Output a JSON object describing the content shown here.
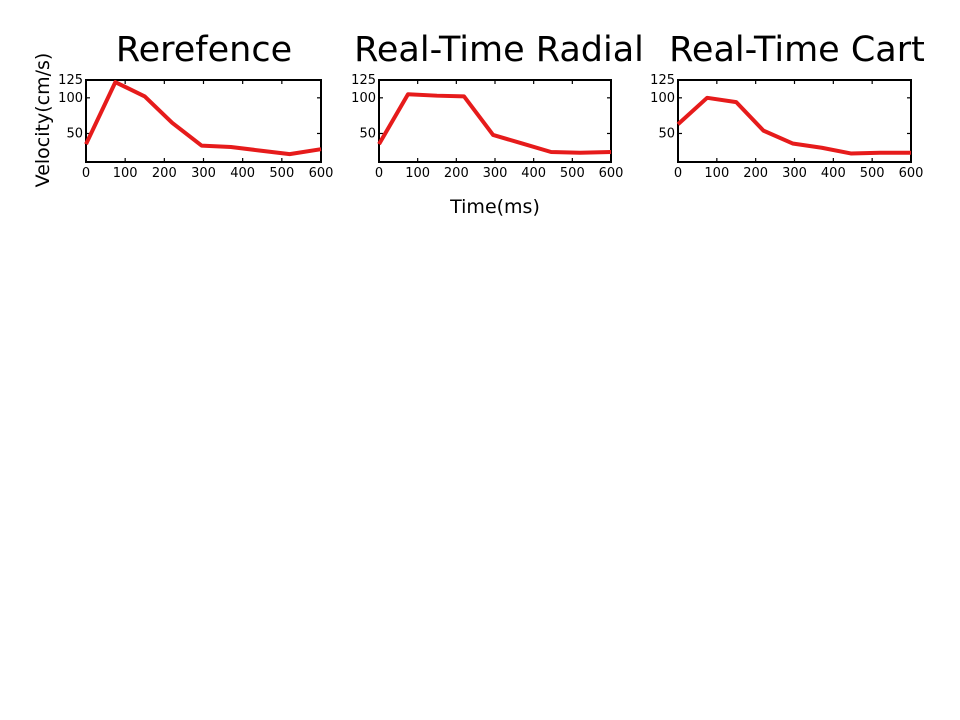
{
  "chart_data": [
    {
      "type": "line",
      "title": "Rerefence",
      "color": "#e61b1b",
      "x": [
        0,
        75,
        150,
        220,
        295,
        370,
        445,
        520,
        600
      ],
      "values": [
        35,
        122,
        102,
        65,
        33,
        31,
        26,
        21,
        28
      ],
      "xlim": [
        0,
        600
      ],
      "ylim": [
        10,
        125
      ],
      "xticks": [
        "0",
        "100",
        "200",
        "300",
        "400",
        "500",
        "600"
      ],
      "yticks": [
        "50",
        "100",
        "125"
      ],
      "grid": false
    },
    {
      "type": "line",
      "title": "Real-Time Radial",
      "color": "#e61b1b",
      "x": [
        0,
        75,
        150,
        220,
        295,
        370,
        445,
        520,
        600
      ],
      "values": [
        35,
        105,
        103,
        102,
        48,
        36,
        24,
        23,
        24
      ],
      "xlim": [
        0,
        600
      ],
      "ylim": [
        10,
        125
      ],
      "xticks": [
        "0",
        "100",
        "200",
        "300",
        "400",
        "500",
        "600"
      ],
      "yticks": [
        "50",
        "100",
        "125"
      ],
      "grid": false
    },
    {
      "type": "line",
      "title": "Real-Time Cart",
      "color": "#e61b1b",
      "x": [
        0,
        75,
        150,
        220,
        295,
        370,
        445,
        520,
        600
      ],
      "values": [
        63,
        100,
        94,
        54,
        36,
        30,
        22,
        23,
        23
      ],
      "xlim": [
        0,
        600
      ],
      "ylim": [
        10,
        125
      ],
      "xticks": [
        "0",
        "100",
        "200",
        "300",
        "400",
        "500",
        "600"
      ],
      "yticks": [
        "50",
        "100",
        "125"
      ],
      "grid": false
    }
  ],
  "shared": {
    "ylabel": "Velocity(cm/s)",
    "xlabel": "Time(ms)"
  }
}
